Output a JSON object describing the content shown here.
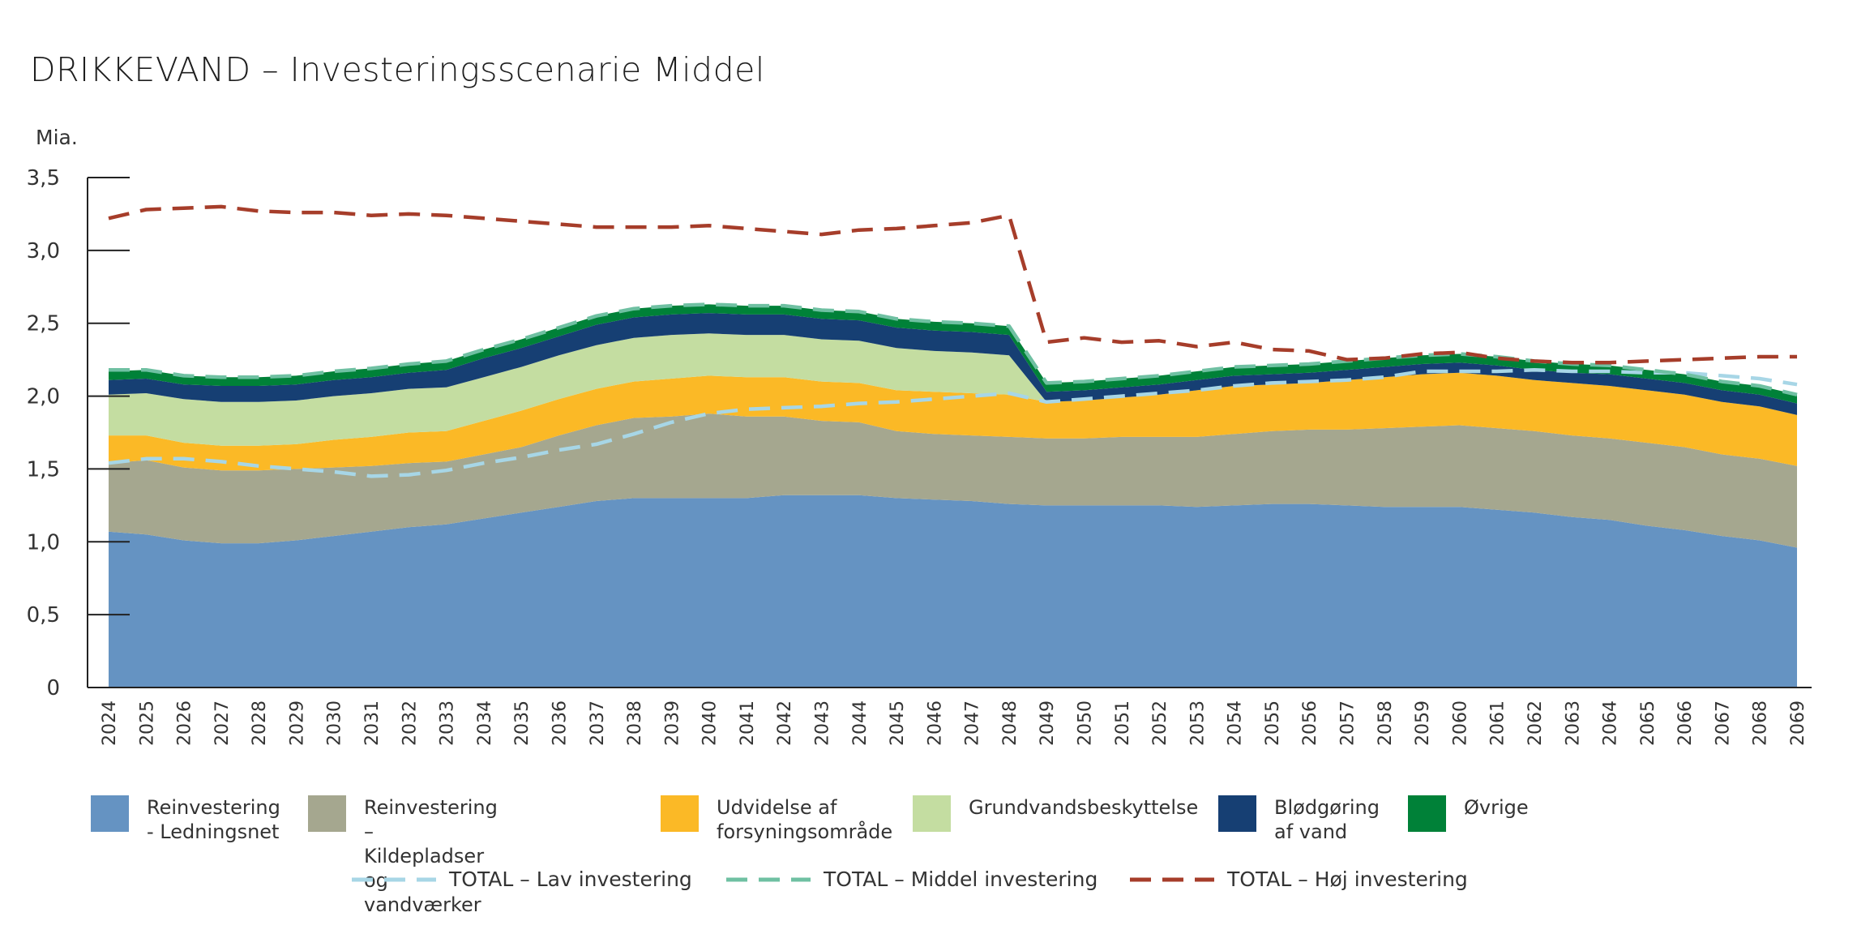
{
  "chart_data": {
    "type": "area",
    "title": "DRIKKEVAND – Investeringsscenarie Middel",
    "ylabel": "Mia.",
    "ylim": [
      0,
      3.5
    ],
    "yticks": [
      0,
      0.5,
      1.0,
      1.5,
      2.0,
      2.5,
      3.0,
      3.5
    ],
    "ytick_labels": [
      "0",
      "0,5",
      "1,0",
      "1,5",
      "2,0",
      "2,5",
      "3,0",
      "3,5"
    ],
    "x": [
      "2024",
      "2025",
      "2026",
      "2027",
      "2028",
      "2029",
      "2030",
      "2031",
      "2032",
      "2033",
      "2034",
      "2035",
      "2036",
      "2037",
      "2038",
      "2039",
      "2040",
      "2041",
      "2042",
      "2043",
      "2044",
      "2045",
      "2046",
      "2047",
      "2048",
      "2049",
      "2050",
      "2051",
      "2052",
      "2053",
      "2054",
      "2055",
      "2056",
      "2057",
      "2058",
      "2059",
      "2060",
      "2061",
      "2062",
      "2063",
      "2064",
      "2065",
      "2066",
      "2067",
      "2068",
      "2069"
    ],
    "stacked_series": [
      {
        "name": "Reinvestering\n- Ledningsnet",
        "color": "#6593c2",
        "values": [
          1.07,
          1.05,
          1.01,
          0.99,
          0.99,
          1.01,
          1.04,
          1.07,
          1.1,
          1.12,
          1.16,
          1.2,
          1.24,
          1.28,
          1.3,
          1.3,
          1.3,
          1.3,
          1.32,
          1.32,
          1.32,
          1.3,
          1.29,
          1.28,
          1.26,
          1.25,
          1.25,
          1.25,
          1.25,
          1.24,
          1.25,
          1.26,
          1.26,
          1.25,
          1.24,
          1.24,
          1.24,
          1.22,
          1.2,
          1.17,
          1.15,
          1.11,
          1.08,
          1.04,
          1.01,
          0.96
        ]
      },
      {
        "name": "Reinvestering – Kildepladser\nog vandværker",
        "color": "#a5a78f",
        "values": [
          0.47,
          0.51,
          0.5,
          0.5,
          0.5,
          0.49,
          0.47,
          0.45,
          0.44,
          0.43,
          0.44,
          0.45,
          0.49,
          0.52,
          0.55,
          0.56,
          0.58,
          0.56,
          0.54,
          0.51,
          0.5,
          0.46,
          0.45,
          0.45,
          0.46,
          0.46,
          0.46,
          0.47,
          0.47,
          0.48,
          0.49,
          0.5,
          0.51,
          0.52,
          0.54,
          0.55,
          0.56,
          0.56,
          0.56,
          0.56,
          0.56,
          0.57,
          0.57,
          0.56,
          0.56,
          0.56
        ]
      },
      {
        "name": "Udvidelse af\nforsyningsområde",
        "color": "#fbb926",
        "values": [
          0.19,
          0.17,
          0.17,
          0.17,
          0.17,
          0.17,
          0.19,
          0.2,
          0.21,
          0.21,
          0.23,
          0.25,
          0.25,
          0.25,
          0.25,
          0.26,
          0.26,
          0.27,
          0.27,
          0.27,
          0.27,
          0.28,
          0.29,
          0.29,
          0.29,
          0.25,
          0.26,
          0.27,
          0.29,
          0.32,
          0.33,
          0.32,
          0.32,
          0.34,
          0.35,
          0.36,
          0.36,
          0.36,
          0.35,
          0.36,
          0.36,
          0.36,
          0.36,
          0.36,
          0.36,
          0.35
        ]
      },
      {
        "name": "Grundvandsbeskyttelse",
        "color": "#c4dda1",
        "values": [
          0.28,
          0.29,
          0.3,
          0.3,
          0.3,
          0.3,
          0.3,
          0.3,
          0.3,
          0.3,
          0.3,
          0.3,
          0.3,
          0.3,
          0.3,
          0.3,
          0.29,
          0.29,
          0.29,
          0.29,
          0.29,
          0.29,
          0.28,
          0.28,
          0.27,
          0.0,
          0.0,
          0.0,
          0.0,
          0.0,
          0.0,
          0.0,
          0.0,
          0.0,
          0.0,
          0.0,
          0.0,
          0.0,
          0.0,
          0.0,
          0.0,
          0.0,
          0.0,
          0.0,
          0.0,
          0.0
        ]
      },
      {
        "name": "Blødgøring\naf vand",
        "color": "#163f73",
        "values": [
          0.1,
          0.1,
          0.1,
          0.11,
          0.11,
          0.11,
          0.11,
          0.11,
          0.11,
          0.12,
          0.13,
          0.13,
          0.13,
          0.14,
          0.14,
          0.14,
          0.14,
          0.14,
          0.14,
          0.14,
          0.14,
          0.14,
          0.14,
          0.14,
          0.14,
          0.07,
          0.07,
          0.07,
          0.07,
          0.07,
          0.07,
          0.07,
          0.07,
          0.07,
          0.07,
          0.07,
          0.07,
          0.07,
          0.07,
          0.07,
          0.08,
          0.08,
          0.08,
          0.08,
          0.08,
          0.08
        ]
      },
      {
        "name": "Øvrige",
        "color": "#008138",
        "values": [
          0.06,
          0.06,
          0.06,
          0.06,
          0.06,
          0.06,
          0.06,
          0.06,
          0.06,
          0.06,
          0.06,
          0.06,
          0.06,
          0.06,
          0.06,
          0.06,
          0.06,
          0.06,
          0.06,
          0.06,
          0.06,
          0.06,
          0.06,
          0.06,
          0.06,
          0.06,
          0.06,
          0.06,
          0.06,
          0.06,
          0.06,
          0.06,
          0.06,
          0.06,
          0.06,
          0.06,
          0.06,
          0.06,
          0.06,
          0.06,
          0.06,
          0.06,
          0.06,
          0.06,
          0.06,
          0.06
        ]
      }
    ],
    "line_series": [
      {
        "name": "TOTAL – Lav investering",
        "color": "#a7d6e6",
        "values": [
          1.54,
          1.57,
          1.57,
          1.55,
          1.52,
          1.5,
          1.48,
          1.45,
          1.46,
          1.49,
          1.54,
          1.58,
          1.63,
          1.67,
          1.74,
          1.82,
          1.88,
          1.91,
          1.92,
          1.93,
          1.95,
          1.96,
          1.98,
          2.0,
          2.02,
          1.96,
          1.98,
          2.0,
          2.02,
          2.04,
          2.07,
          2.09,
          2.1,
          2.11,
          2.13,
          2.17,
          2.17,
          2.17,
          2.18,
          2.17,
          2.17,
          2.16,
          2.16,
          2.14,
          2.12,
          2.08
        ]
      },
      {
        "name": "TOTAL – Middel investering",
        "color": "#6fc0a2",
        "values": [
          2.18,
          2.18,
          2.14,
          2.13,
          2.13,
          2.14,
          2.17,
          2.19,
          2.22,
          2.24,
          2.32,
          2.39,
          2.47,
          2.55,
          2.6,
          2.62,
          2.63,
          2.62,
          2.62,
          2.59,
          2.58,
          2.53,
          2.51,
          2.5,
          2.48,
          2.09,
          2.1,
          2.12,
          2.14,
          2.17,
          2.2,
          2.21,
          2.22,
          2.24,
          2.26,
          2.28,
          2.29,
          2.27,
          2.24,
          2.22,
          2.21,
          2.18,
          2.15,
          2.1,
          2.07,
          2.01
        ]
      },
      {
        "name": "TOTAL – Høj investering",
        "color": "#a63d2a",
        "values": [
          3.22,
          3.28,
          3.29,
          3.3,
          3.27,
          3.26,
          3.26,
          3.24,
          3.25,
          3.24,
          3.22,
          3.2,
          3.18,
          3.16,
          3.16,
          3.16,
          3.17,
          3.15,
          3.13,
          3.11,
          3.14,
          3.15,
          3.17,
          3.19,
          3.24,
          2.37,
          2.4,
          2.37,
          2.38,
          2.34,
          2.37,
          2.32,
          2.31,
          2.25,
          2.26,
          2.29,
          2.3,
          2.26,
          2.24,
          2.23,
          2.23,
          2.24,
          2.25,
          2.26,
          2.27,
          2.27
        ]
      }
    ]
  }
}
